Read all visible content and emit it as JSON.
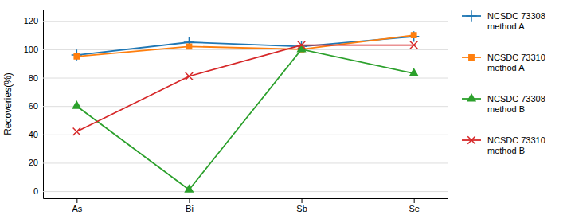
{
  "chart_data": {
    "type": "line",
    "y_label": "Recoveries(%)",
    "categories": [
      "As",
      "Bi",
      "Sb",
      "Se"
    ],
    "series": [
      {
        "name": "NCSDC 73308\nmethod A",
        "values": [
          96,
          105,
          102,
          109
        ],
        "marker": "plus"
      },
      {
        "name": "NCSDC 73310\nmethod A",
        "values": [
          95,
          102,
          100,
          110
        ],
        "marker": "square"
      },
      {
        "name": "NCSDC 73308\nmethod B",
        "values": [
          60,
          1,
          100,
          83
        ],
        "marker": "triangle"
      },
      {
        "name": "NCSDC 73310\nmethod B",
        "values": [
          42,
          81,
          103,
          103
        ],
        "marker": "x"
      }
    ],
    "ylim": [
      -5,
      128
    ],
    "yticks": [
      0,
      20,
      40,
      60,
      80,
      100,
      120
    ],
    "grid": true,
    "legend": "right"
  }
}
